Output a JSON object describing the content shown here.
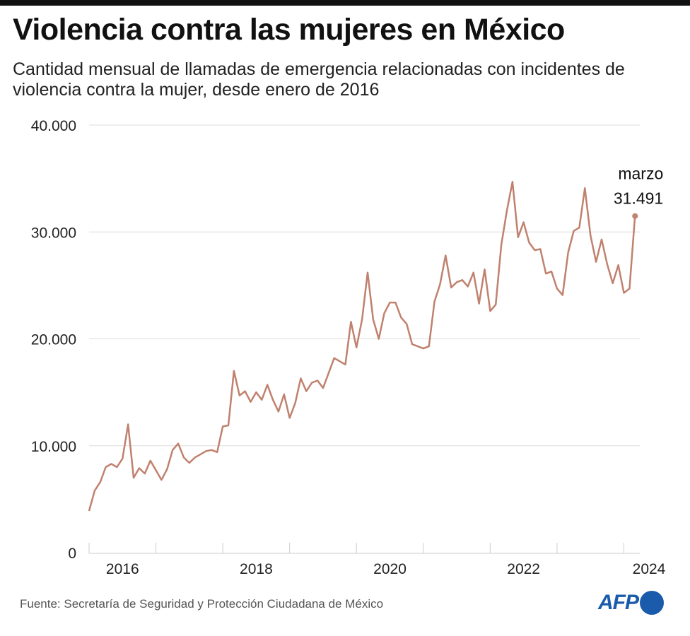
{
  "header": {
    "title": "Violencia contra las mujeres en México",
    "subtitle": "Cantidad mensual de llamadas de emergencia relacionadas con incidentes de violencia contra la mujer, desde enero de 2016"
  },
  "footer": {
    "source": "Fuente: Secretaría de Seguridad y Protección Ciudadana de México",
    "logo": "AFP"
  },
  "colors": {
    "line": "#c0816e",
    "grid": "#dddddd",
    "logo": "#1a5bab"
  },
  "chart_data": {
    "type": "line",
    "title": "Violencia contra las mujeres en México",
    "xlabel": "",
    "ylabel": "",
    "start": "2016-01",
    "frequency": "monthly",
    "ylim": [
      0,
      40000
    ],
    "yticks": [
      0,
      10000,
      20000,
      30000,
      40000
    ],
    "ytick_labels": [
      "0",
      "10.000",
      "20.000",
      "30.000",
      "40.000"
    ],
    "xtick_labels": [
      "2016",
      "2018",
      "2020",
      "2022",
      "2024"
    ],
    "grid": "horizontal",
    "annotation": {
      "label": "marzo",
      "value_label": "31.491",
      "date": "2024-03"
    },
    "values": [
      3900,
      5800,
      6600,
      8000,
      8300,
      8000,
      8800,
      12000,
      7000,
      7900,
      7400,
      8600,
      7700,
      6800,
      7800,
      9600,
      10200,
      8900,
      8400,
      8900,
      9200,
      9500,
      9600,
      9400,
      11800,
      11900,
      17000,
      14700,
      15100,
      14100,
      15000,
      14300,
      15700,
      14300,
      13200,
      14800,
      12600,
      14000,
      16300,
      15100,
      15900,
      16100,
      15400,
      16800,
      18200,
      17900,
      17600,
      21600,
      19200,
      21800,
      26200,
      21800,
      20000,
      22400,
      23400,
      23400,
      22000,
      21400,
      19500,
      19300,
      19100,
      19300,
      23500,
      25100,
      27800,
      24800,
      25300,
      25500,
      24900,
      26200,
      23300,
      26500,
      22600,
      23200,
      28800,
      32000,
      34700,
      29500,
      30900,
      29000,
      28300,
      28400,
      26100,
      26300,
      24700,
      24100,
      28100,
      30100,
      30400,
      34100,
      29700,
      27200,
      29300,
      27000,
      25200,
      26900,
      24300,
      24700,
      31491
    ]
  }
}
